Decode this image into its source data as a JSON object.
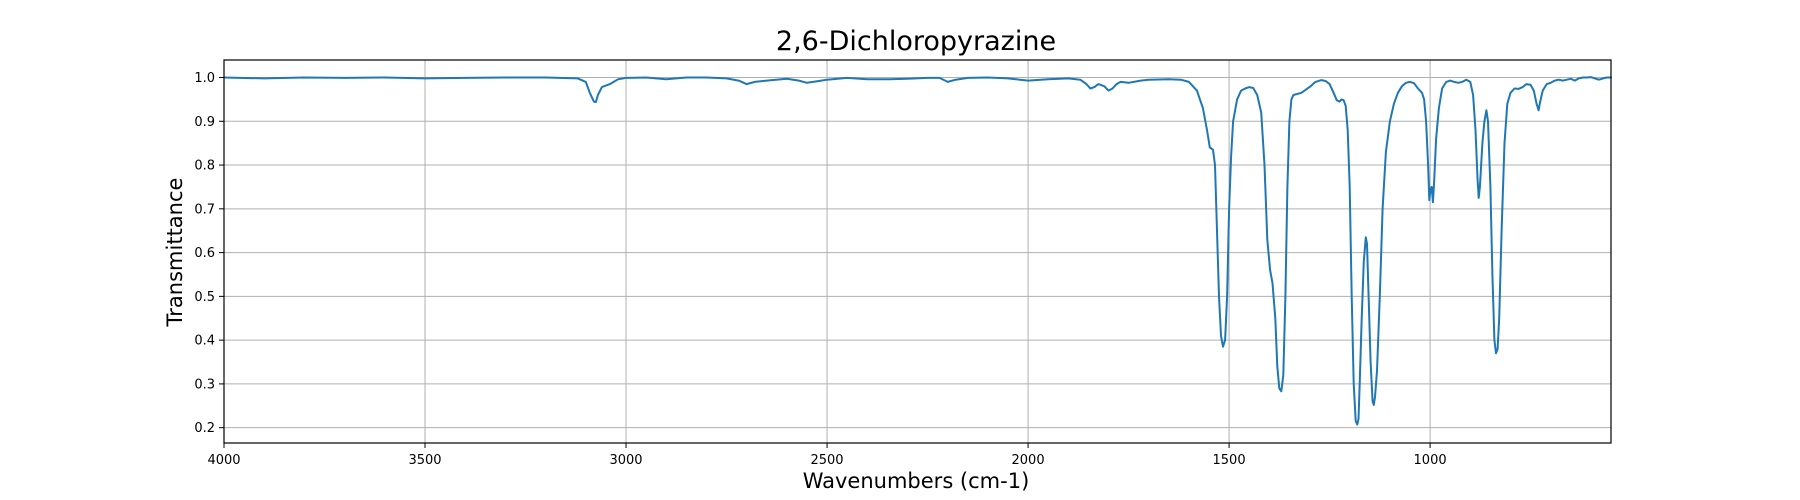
{
  "chart_data": {
    "type": "line",
    "title": "2,6-Dichloropyrazine",
    "xlabel": "Wavenumbers (cm-1)",
    "ylabel": "Transmittance",
    "xlim": [
      4000,
      550
    ],
    "ylim": [
      0.165,
      1.04
    ],
    "x_inverted": true,
    "grid": true,
    "x_ticks": [
      4000,
      3500,
      3000,
      2500,
      2000,
      1500,
      1000
    ],
    "x_tick_labels": [
      "4000",
      "3500",
      "3000",
      "2500",
      "2000",
      "1500",
      "1000"
    ],
    "y_ticks": [
      0.2,
      0.3,
      0.4,
      0.5,
      0.6,
      0.7,
      0.8,
      0.9,
      1.0
    ],
    "y_tick_labels": [
      "0.2",
      "0.3",
      "0.4",
      "0.5",
      "0.6",
      "0.7",
      "0.8",
      "0.9",
      "1.0"
    ],
    "series": [
      {
        "color": "#1f77b4",
        "points": [
          [
            4000,
            1.0
          ],
          [
            3900,
            0.998
          ],
          [
            3800,
            1.0
          ],
          [
            3700,
            0.999
          ],
          [
            3600,
            1.0
          ],
          [
            3500,
            0.998
          ],
          [
            3400,
            0.999
          ],
          [
            3300,
            1.0
          ],
          [
            3200,
            1.0
          ],
          [
            3120,
            0.998
          ],
          [
            3100,
            0.99
          ],
          [
            3090,
            0.965
          ],
          [
            3080,
            0.945
          ],
          [
            3075,
            0.944
          ],
          [
            3070,
            0.96
          ],
          [
            3060,
            0.978
          ],
          [
            3040,
            0.985
          ],
          [
            3020,
            0.996
          ],
          [
            3000,
            0.999
          ],
          [
            2950,
            1.0
          ],
          [
            2900,
            0.996
          ],
          [
            2850,
            1.0
          ],
          [
            2800,
            1.0
          ],
          [
            2750,
            0.998
          ],
          [
            2720,
            0.993
          ],
          [
            2700,
            0.985
          ],
          [
            2680,
            0.99
          ],
          [
            2650,
            0.993
          ],
          [
            2600,
            0.997
          ],
          [
            2570,
            0.993
          ],
          [
            2550,
            0.988
          ],
          [
            2520,
            0.992
          ],
          [
            2500,
            0.995
          ],
          [
            2450,
            0.999
          ],
          [
            2400,
            0.996
          ],
          [
            2350,
            0.996
          ],
          [
            2300,
            0.997
          ],
          [
            2250,
            0.999
          ],
          [
            2220,
            0.999
          ],
          [
            2200,
            0.99
          ],
          [
            2180,
            0.995
          ],
          [
            2150,
            0.999
          ],
          [
            2100,
            1.0
          ],
          [
            2050,
            0.998
          ],
          [
            2020,
            0.995
          ],
          [
            2000,
            0.993
          ],
          [
            1950,
            0.996
          ],
          [
            1900,
            0.998
          ],
          [
            1870,
            0.995
          ],
          [
            1855,
            0.985
          ],
          [
            1845,
            0.975
          ],
          [
            1835,
            0.978
          ],
          [
            1825,
            0.985
          ],
          [
            1810,
            0.98
          ],
          [
            1800,
            0.97
          ],
          [
            1790,
            0.975
          ],
          [
            1780,
            0.985
          ],
          [
            1770,
            0.99
          ],
          [
            1750,
            0.988
          ],
          [
            1720,
            0.993
          ],
          [
            1700,
            0.995
          ],
          [
            1650,
            0.996
          ],
          [
            1620,
            0.995
          ],
          [
            1600,
            0.99
          ],
          [
            1580,
            0.97
          ],
          [
            1565,
            0.93
          ],
          [
            1555,
            0.88
          ],
          [
            1548,
            0.84
          ],
          [
            1540,
            0.835
          ],
          [
            1535,
            0.8
          ],
          [
            1530,
            0.65
          ],
          [
            1525,
            0.5
          ],
          [
            1520,
            0.41
          ],
          [
            1515,
            0.385
          ],
          [
            1510,
            0.4
          ],
          [
            1505,
            0.5
          ],
          [
            1500,
            0.7
          ],
          [
            1495,
            0.82
          ],
          [
            1490,
            0.9
          ],
          [
            1480,
            0.95
          ],
          [
            1470,
            0.97
          ],
          [
            1460,
            0.975
          ],
          [
            1450,
            0.978
          ],
          [
            1440,
            0.976
          ],
          [
            1430,
            0.96
          ],
          [
            1420,
            0.92
          ],
          [
            1412,
            0.8
          ],
          [
            1405,
            0.63
          ],
          [
            1398,
            0.56
          ],
          [
            1392,
            0.53
          ],
          [
            1385,
            0.45
          ],
          [
            1380,
            0.34
          ],
          [
            1375,
            0.29
          ],
          [
            1370,
            0.283
          ],
          [
            1365,
            0.32
          ],
          [
            1360,
            0.5
          ],
          [
            1355,
            0.75
          ],
          [
            1350,
            0.9
          ],
          [
            1345,
            0.95
          ],
          [
            1340,
            0.96
          ],
          [
            1320,
            0.965
          ],
          [
            1300,
            0.978
          ],
          [
            1285,
            0.99
          ],
          [
            1270,
            0.994
          ],
          [
            1260,
            0.992
          ],
          [
            1250,
            0.985
          ],
          [
            1240,
            0.965
          ],
          [
            1232,
            0.948
          ],
          [
            1225,
            0.945
          ],
          [
            1220,
            0.95
          ],
          [
            1215,
            0.948
          ],
          [
            1210,
            0.935
          ],
          [
            1205,
            0.88
          ],
          [
            1200,
            0.75
          ],
          [
            1195,
            0.5
          ],
          [
            1190,
            0.3
          ],
          [
            1185,
            0.215
          ],
          [
            1181,
            0.207
          ],
          [
            1178,
            0.22
          ],
          [
            1175,
            0.3
          ],
          [
            1170,
            0.45
          ],
          [
            1165,
            0.58
          ],
          [
            1160,
            0.635
          ],
          [
            1157,
            0.62
          ],
          [
            1153,
            0.5
          ],
          [
            1148,
            0.35
          ],
          [
            1143,
            0.26
          ],
          [
            1140,
            0.252
          ],
          [
            1137,
            0.27
          ],
          [
            1132,
            0.33
          ],
          [
            1125,
            0.5
          ],
          [
            1118,
            0.7
          ],
          [
            1110,
            0.83
          ],
          [
            1100,
            0.9
          ],
          [
            1090,
            0.94
          ],
          [
            1080,
            0.965
          ],
          [
            1070,
            0.98
          ],
          [
            1060,
            0.988
          ],
          [
            1050,
            0.99
          ],
          [
            1040,
            0.987
          ],
          [
            1030,
            0.975
          ],
          [
            1020,
            0.965
          ],
          [
            1015,
            0.95
          ],
          [
            1010,
            0.9
          ],
          [
            1005,
            0.8
          ],
          [
            1002,
            0.72
          ],
          [
            999,
            0.745
          ],
          [
            996,
            0.75
          ],
          [
            993,
            0.715
          ],
          [
            990,
            0.76
          ],
          [
            985,
            0.86
          ],
          [
            978,
            0.93
          ],
          [
            970,
            0.975
          ],
          [
            960,
            0.99
          ],
          [
            950,
            0.993
          ],
          [
            940,
            0.99
          ],
          [
            930,
            0.988
          ],
          [
            920,
            0.99
          ],
          [
            910,
            0.995
          ],
          [
            900,
            0.99
          ],
          [
            893,
            0.96
          ],
          [
            887,
            0.88
          ],
          [
            882,
            0.77
          ],
          [
            879,
            0.725
          ],
          [
            876,
            0.75
          ],
          [
            870,
            0.85
          ],
          [
            865,
            0.9
          ],
          [
            860,
            0.925
          ],
          [
            856,
            0.9
          ],
          [
            850,
            0.75
          ],
          [
            845,
            0.55
          ],
          [
            840,
            0.4
          ],
          [
            836,
            0.37
          ],
          [
            832,
            0.38
          ],
          [
            828,
            0.45
          ],
          [
            822,
            0.65
          ],
          [
            815,
            0.85
          ],
          [
            808,
            0.94
          ],
          [
            800,
            0.965
          ],
          [
            790,
            0.975
          ],
          [
            780,
            0.974
          ],
          [
            770,
            0.978
          ],
          [
            760,
            0.985
          ],
          [
            750,
            0.983
          ],
          [
            742,
            0.97
          ],
          [
            735,
            0.94
          ],
          [
            730,
            0.925
          ],
          [
            726,
            0.945
          ],
          [
            720,
            0.97
          ],
          [
            710,
            0.985
          ],
          [
            700,
            0.988
          ],
          [
            690,
            0.993
          ],
          [
            680,
            0.995
          ],
          [
            670,
            0.993
          ],
          [
            660,
            0.995
          ],
          [
            650,
            0.997
          ],
          [
            640,
            0.993
          ],
          [
            630,
            0.998
          ],
          [
            620,
            1.0
          ],
          [
            610,
            1.0
          ],
          [
            600,
            1.001
          ],
          [
            590,
            0.998
          ],
          [
            580,
            0.995
          ],
          [
            570,
            0.998
          ],
          [
            560,
            1.0
          ],
          [
            550,
            1.0
          ]
        ]
      }
    ]
  }
}
